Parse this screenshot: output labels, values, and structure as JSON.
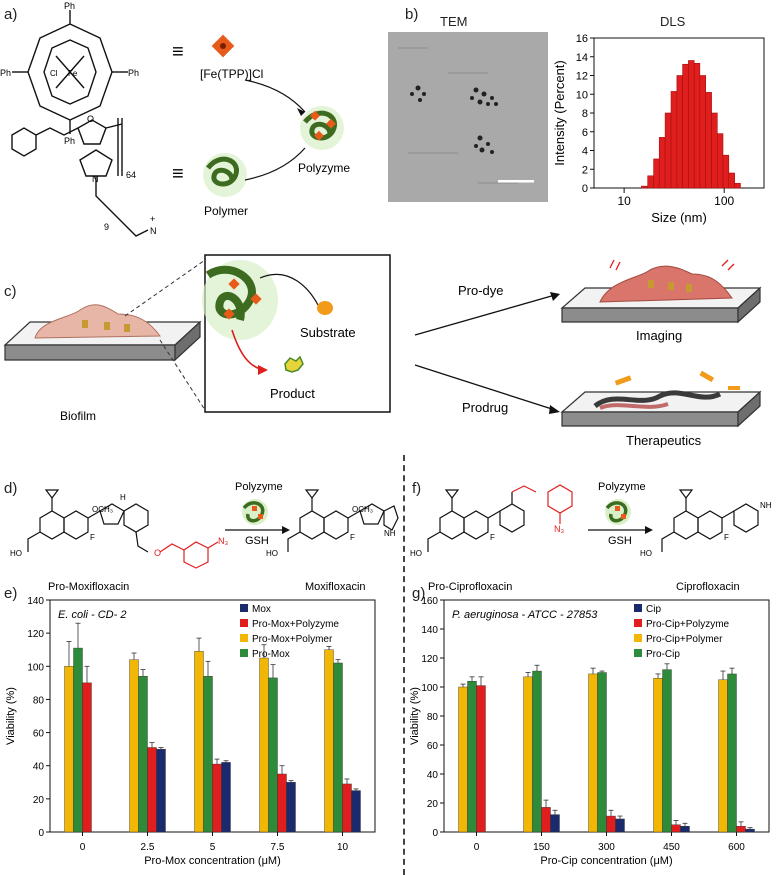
{
  "panel_labels": {
    "a": "a)",
    "b": "b)",
    "c": "c)",
    "d": "d)",
    "e": "e)",
    "f": "f)",
    "g": "g)"
  },
  "panel_a": {
    "ph": "Ph",
    "fe": "Fe",
    "cl": "Cl",
    "n": "N",
    "o": "O",
    "n_plus": "+",
    "repeat_64": "64",
    "repeat_9": "9",
    "equiv": "≡",
    "fetpp_label": "[Fe(TPP)]Cl",
    "polymer_label": "Polymer",
    "polyzyme_label": "Polyzyme"
  },
  "panel_b": {
    "tem_title": "TEM",
    "dls_title": "DLS"
  },
  "panel_c": {
    "substrate": "Substrate",
    "product": "Product",
    "biofilm": "Biofilm",
    "pro_dye": "Pro-dye",
    "prodrug": "Prodrug",
    "imaging": "Imaging",
    "therapeutics": "Therapeutics"
  },
  "panel_d": {
    "catalyst": "Polyzyme",
    "reagent": "GSH",
    "pro_name": "Pro-Moxifloxacin",
    "drug_name": "Moxifloxacin",
    "och3": "OCH₃",
    "n3": "N₃",
    "f": "F",
    "ho": "HO",
    "h": "H",
    "nh": "NH"
  },
  "panel_f": {
    "catalyst": "Polyzyme",
    "reagent": "GSH",
    "pro_name": "Pro-Ciprofloxacin",
    "drug_name": "Ciprofloxacin",
    "n3": "N₃",
    "f": "F",
    "ho": "HO",
    "nh": "NH"
  },
  "chart_data": [
    {
      "panel": "b-DLS",
      "type": "bar",
      "title": "DLS",
      "xlabel": "Size (nm)",
      "ylabel": "Intensity (Percent)",
      "x_scale": "log",
      "x_ticks": [
        "10",
        "100"
      ],
      "ylim": [
        0,
        16
      ],
      "y_ticks": [
        "0",
        "2",
        "4",
        "6",
        "8",
        "10",
        "12",
        "14",
        "16"
      ],
      "bin_centers": [
        16,
        18.5,
        21,
        24,
        27.5,
        31.5,
        36,
        41,
        47,
        53.5,
        61,
        70,
        80,
        91,
        104,
        119,
        136
      ],
      "values": [
        0.2,
        1.3,
        3.1,
        5.4,
        8.0,
        10.3,
        12.0,
        13.2,
        13.6,
        13.3,
        12.0,
        10.2,
        8.0,
        5.8,
        3.5,
        1.6,
        0.5
      ],
      "color": "#e01e1e"
    },
    {
      "panel": "e",
      "type": "bar",
      "title": "E. coli - CD- 2",
      "xlabel": "Pro-Mox concentration (μM)",
      "ylabel": "Viability (%)",
      "ylim": [
        0,
        140
      ],
      "y_ticks": [
        "0",
        "20",
        "40",
        "60",
        "80",
        "100",
        "120",
        "140"
      ],
      "categories": [
        "0",
        "2.5",
        "5",
        "7.5",
        "10"
      ],
      "legend": [
        "Mox",
        "Pro-Mox+Polyzyme",
        "Pro-Mox+Polymer",
        "Pro-Mox"
      ],
      "legend_placement": "top-right",
      "series": [
        {
          "name": "Pro-Mox+Polymer",
          "color": "#f2b705",
          "values": [
            100,
            104,
            109,
            105,
            110
          ],
          "errors": [
            15,
            4,
            8,
            8,
            2
          ]
        },
        {
          "name": "Pro-Mox",
          "color": "#2e8b3a",
          "values": [
            111,
            94,
            94,
            93,
            102
          ],
          "errors": [
            15,
            4,
            9,
            8,
            2
          ]
        },
        {
          "name": "Pro-Mox+Polyzyme",
          "color": "#e01e1e",
          "values": [
            90,
            51,
            41,
            35,
            29
          ],
          "errors": [
            10,
            3,
            3,
            5,
            3
          ]
        },
        {
          "name": "Mox",
          "color": "#1a2a6c",
          "values": [
            null,
            50,
            42,
            30,
            25
          ],
          "errors": [
            0,
            1,
            1,
            1,
            1
          ]
        }
      ]
    },
    {
      "panel": "g",
      "type": "bar",
      "title": "P. aeruginosa - ATCC - 27853",
      "xlabel": "Pro-Cip concentration (μM)",
      "ylabel": "Viability (%)",
      "ylim": [
        0,
        160
      ],
      "y_ticks": [
        "0",
        "20",
        "40",
        "60",
        "80",
        "100",
        "120",
        "140",
        "160"
      ],
      "categories": [
        "0",
        "150",
        "300",
        "450",
        "600"
      ],
      "legend": [
        "Cip",
        "Pro-Cip+Polyzyme",
        "Pro-Cip+Polymer",
        "Pro-Cip"
      ],
      "legend_placement": "top-right",
      "series": [
        {
          "name": "Pro-Cip+Polymer",
          "color": "#f2b705",
          "values": [
            100,
            107,
            109,
            106,
            105
          ],
          "errors": [
            2,
            3,
            4,
            3,
            6
          ]
        },
        {
          "name": "Pro-Cip",
          "color": "#2e8b3a",
          "values": [
            104,
            111,
            110,
            112,
            109
          ],
          "errors": [
            3,
            4,
            1,
            4,
            4
          ]
        },
        {
          "name": "Pro-Cip+Polyzyme",
          "color": "#e01e1e",
          "values": [
            101,
            17,
            11,
            5,
            4
          ],
          "errors": [
            6,
            5,
            4,
            3,
            3
          ]
        },
        {
          "name": "Cip",
          "color": "#1a2a6c",
          "values": [
            null,
            12,
            9,
            4,
            2
          ],
          "errors": [
            0,
            3,
            2,
            2,
            1
          ]
        }
      ]
    }
  ]
}
